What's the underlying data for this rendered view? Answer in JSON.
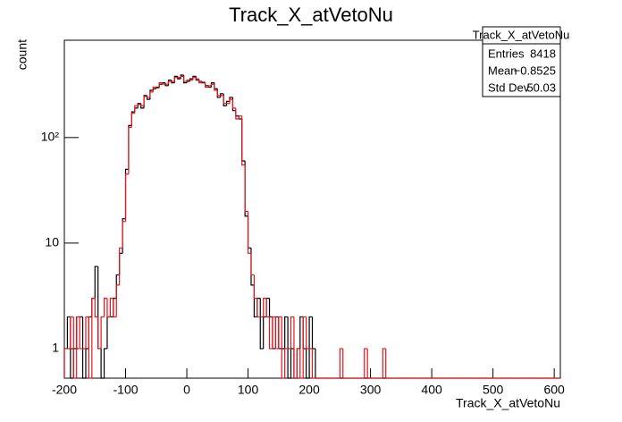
{
  "chart_data": {
    "type": "histogram",
    "title": "Track_X_atVetoNu",
    "xlabel": "Track_X_atVetoNu",
    "ylabel": "count",
    "log_y": true,
    "xlim": [
      -200,
      610
    ],
    "ylim": [
      0.525,
      835
    ],
    "xticks": [
      -200,
      -100,
      0,
      100,
      200,
      300,
      400,
      500,
      600
    ],
    "yticks": [
      1,
      10,
      {
        "value": 100,
        "label": "10²"
      }
    ],
    "bins": [
      -200,
      -195,
      -190,
      -185,
      -180,
      -175,
      -170,
      -165,
      -160,
      -155,
      -150,
      -145,
      -140,
      -135,
      -130,
      -125,
      -120,
      -115,
      -110,
      -105,
      -100,
      -95,
      -90,
      -85,
      -80,
      -75,
      -70,
      -65,
      -60,
      -55,
      -50,
      -45,
      -40,
      -35,
      -30,
      -25,
      -20,
      -15,
      -10,
      -5,
      0,
      5,
      10,
      15,
      20,
      25,
      30,
      35,
      40,
      45,
      50,
      55,
      60,
      65,
      70,
      75,
      80,
      85,
      90,
      95,
      100,
      105,
      110,
      115,
      120,
      125,
      130,
      135,
      140,
      145,
      150,
      155,
      160,
      165,
      170,
      175,
      180,
      185,
      190,
      195,
      200,
      205,
      210,
      215,
      220,
      225,
      230,
      235,
      240,
      245,
      250,
      255,
      260,
      265,
      270,
      275,
      280,
      285,
      290,
      295,
      300,
      305,
      310,
      315,
      320,
      325,
      330,
      335,
      340,
      345,
      350,
      355,
      360,
      365,
      370,
      375,
      380,
      385,
      390,
      395,
      400,
      405,
      410,
      415,
      420,
      425,
      430,
      435,
      440,
      445,
      450,
      455,
      460,
      465,
      470,
      475,
      480,
      485,
      490,
      495,
      500,
      505,
      510,
      515,
      520,
      525,
      530,
      535,
      540,
      545,
      550,
      555,
      560,
      565,
      570,
      575,
      580,
      585,
      590,
      595,
      600,
      605,
      610
    ],
    "series": [
      {
        "color": "#000000",
        "values": [
          1,
          2,
          0,
          1,
          2,
          2,
          0,
          1,
          2,
          3,
          6,
          1,
          0,
          1,
          2,
          2,
          3,
          5,
          8,
          17,
          50,
          130,
          175,
          190,
          210,
          190,
          250,
          230,
          280,
          290,
          300,
          320,
          330,
          310,
          350,
          330,
          380,
          360,
          390,
          330,
          340,
          360,
          380,
          350,
          340,
          330,
          310,
          300,
          330,
          290,
          240,
          260,
          200,
          220,
          240,
          180,
          160,
          150,
          60,
          18,
          9,
          4,
          2,
          3,
          1,
          2,
          3,
          2,
          1,
          2,
          1,
          1,
          2,
          0,
          1,
          0,
          1,
          2,
          1,
          0,
          2,
          1,
          0,
          0,
          0,
          0,
          0,
          0,
          0,
          0,
          0,
          0,
          0,
          0,
          0,
          0,
          0,
          0,
          0,
          0,
          0,
          0,
          0,
          0,
          0,
          0,
          0,
          0,
          0,
          0,
          0,
          0,
          0,
          0,
          0,
          0,
          0,
          0,
          0,
          0,
          0,
          0,
          0,
          0,
          0,
          0,
          0,
          0,
          0,
          0,
          0,
          0,
          0,
          0,
          0,
          0,
          0,
          0,
          0,
          0,
          0,
          0,
          0,
          0,
          0,
          0,
          0,
          0,
          0,
          0,
          0,
          0,
          0,
          0,
          0,
          0,
          0,
          0,
          0,
          0,
          0,
          0
        ]
      },
      {
        "color": "#e8141c",
        "values": [
          1,
          1,
          2,
          0,
          2,
          1,
          1,
          2,
          0,
          3,
          2,
          1,
          2,
          3,
          2,
          3,
          2,
          4,
          9,
          16,
          45,
          125,
          170,
          200,
          205,
          200,
          245,
          240,
          270,
          300,
          295,
          330,
          320,
          320,
          340,
          340,
          370,
          370,
          380,
          340,
          350,
          350,
          370,
          360,
          330,
          335,
          300,
          310,
          320,
          280,
          250,
          250,
          210,
          210,
          230,
          190,
          150,
          160,
          55,
          20,
          8,
          5,
          3,
          2,
          2,
          3,
          2,
          1,
          2,
          1,
          2,
          0,
          1,
          1,
          2,
          0,
          1,
          0,
          2,
          1,
          1,
          0,
          0,
          0,
          0,
          0,
          0,
          0,
          0,
          0,
          1,
          0,
          0,
          0,
          0,
          0,
          0,
          0,
          1,
          0,
          0,
          0,
          0,
          0,
          1,
          0,
          0,
          0,
          0,
          0,
          0,
          0,
          0,
          0,
          0,
          0,
          0,
          0,
          0,
          0,
          0,
          0,
          0,
          0,
          0,
          0,
          0,
          0,
          0,
          0,
          0,
          0,
          0,
          0,
          0,
          0,
          0,
          0,
          0,
          0,
          0,
          0,
          0,
          0,
          0,
          0,
          0,
          0,
          0,
          0,
          0,
          0,
          0,
          0,
          0,
          0,
          0,
          0,
          0,
          0,
          0,
          0,
          0,
          0,
          0,
          0,
          0
        ]
      }
    ],
    "stats": {
      "title": "Track_X_atVetoNu",
      "rows": [
        [
          "Entries",
          "8418"
        ],
        [
          "Mean",
          "−0.8525"
        ],
        [
          "Std Dev",
          "50.03"
        ]
      ]
    }
  }
}
